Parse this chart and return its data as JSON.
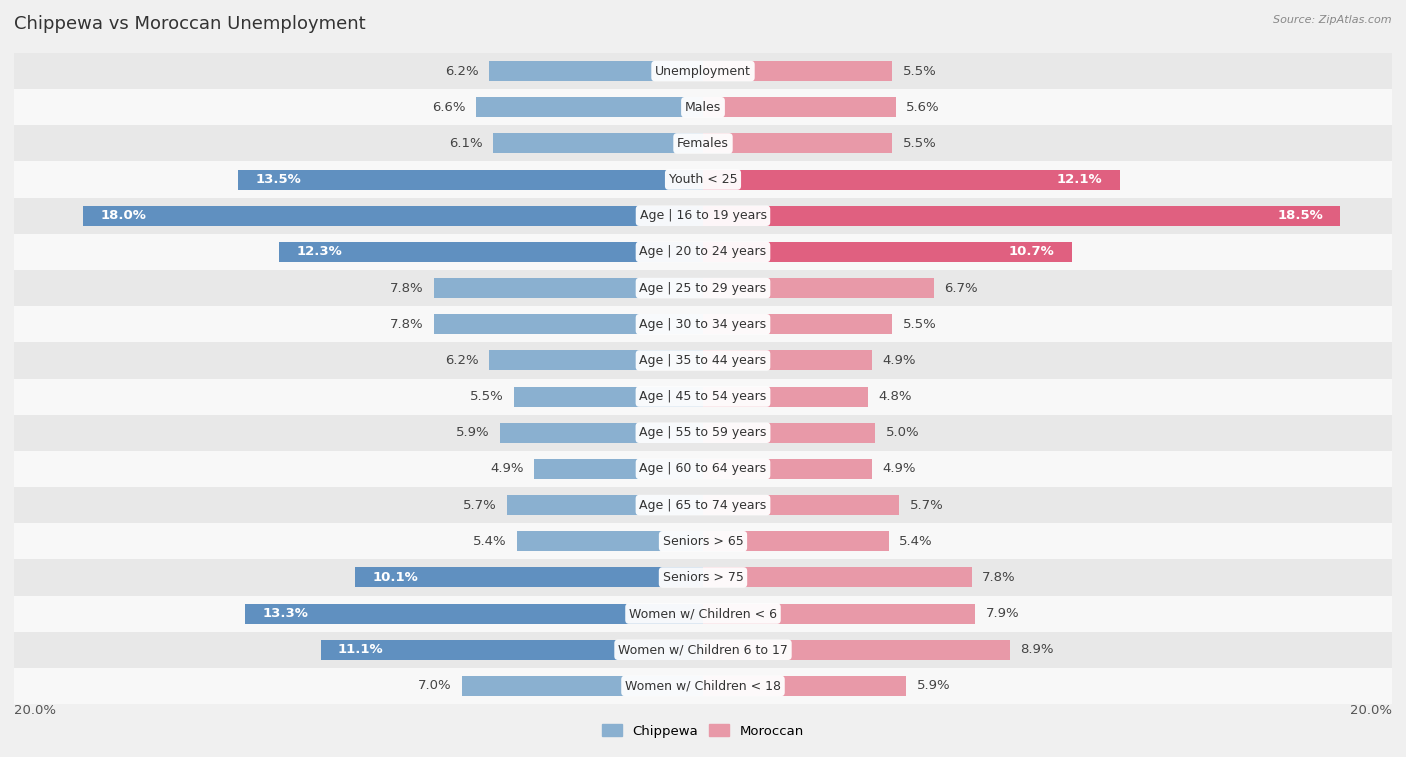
{
  "title": "Chippewa vs Moroccan Unemployment",
  "source": "Source: ZipAtlas.com",
  "categories": [
    "Unemployment",
    "Males",
    "Females",
    "Youth < 25",
    "Age | 16 to 19 years",
    "Age | 20 to 24 years",
    "Age | 25 to 29 years",
    "Age | 30 to 34 years",
    "Age | 35 to 44 years",
    "Age | 45 to 54 years",
    "Age | 55 to 59 years",
    "Age | 60 to 64 years",
    "Age | 65 to 74 years",
    "Seniors > 65",
    "Seniors > 75",
    "Women w/ Children < 6",
    "Women w/ Children 6 to 17",
    "Women w/ Children < 18"
  ],
  "chippewa": [
    6.2,
    6.6,
    6.1,
    13.5,
    18.0,
    12.3,
    7.8,
    7.8,
    6.2,
    5.5,
    5.9,
    4.9,
    5.7,
    5.4,
    10.1,
    13.3,
    11.1,
    7.0
  ],
  "moroccan": [
    5.5,
    5.6,
    5.5,
    12.1,
    18.5,
    10.7,
    6.7,
    5.5,
    4.9,
    4.8,
    5.0,
    4.9,
    5.7,
    5.4,
    7.8,
    7.9,
    8.9,
    5.9
  ],
  "chippewa_color": "#8ab0d0",
  "moroccan_color": "#e899a8",
  "chippewa_highlight_color": "#6090c0",
  "moroccan_highlight_color": "#e06080",
  "highlight_threshold": 10.0,
  "xlim": 20.0,
  "legend_chippewa": "Chippewa",
  "legend_moroccan": "Moroccan",
  "bg_color": "#f0f0f0",
  "row_even_color": "#e8e8e8",
  "row_odd_color": "#f8f8f8",
  "bar_height": 0.55,
  "label_fontsize": 9.5,
  "title_fontsize": 13,
  "category_fontsize": 9
}
